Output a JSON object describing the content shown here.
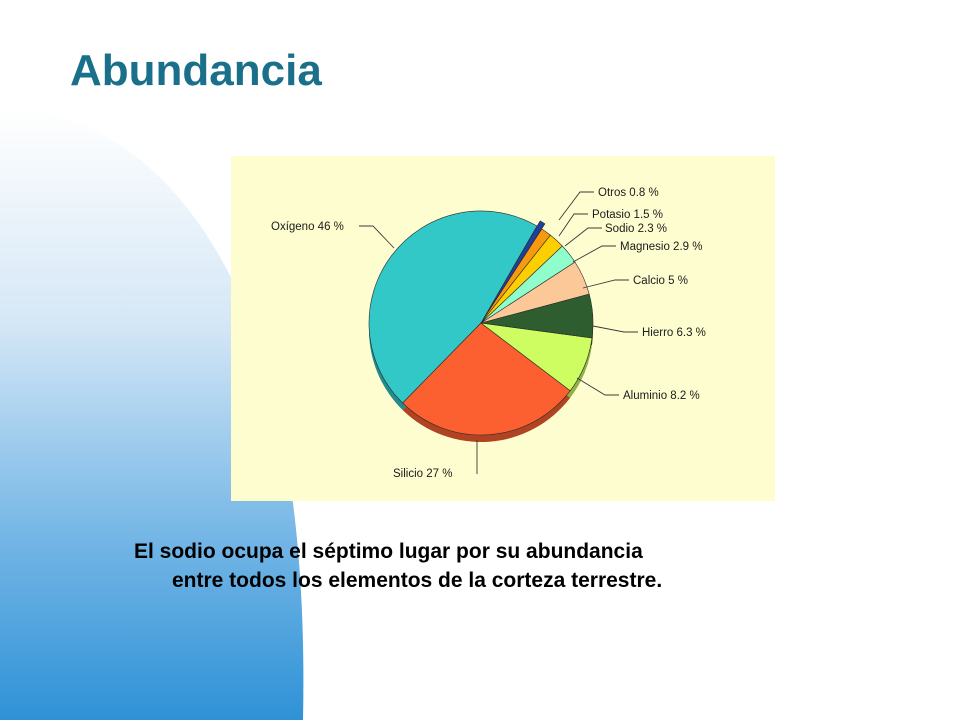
{
  "slide": {
    "title": "Abundancia",
    "caption_line_1": "El sodio ocupa el séptimo lugar por su abundancia",
    "caption_line_2": "entre todos los elementos de la corteza terrestre."
  },
  "colors": {
    "title": "#1a6f8a",
    "chart_background": "#fdfdd0",
    "decor_blue": "#2f92d6"
  },
  "chart_data": {
    "type": "pie",
    "title": "",
    "labels": [
      "Oxígeno 46 %",
      "Silicio 27 %",
      "Aluminio 8.2 %",
      "Hierro 6.3 %",
      "Calcio 5 %",
      "Magnesio 2.9 %",
      "Sodio 2.3 %",
      "Potasio 1.5 %",
      "Otros 0.8 %"
    ],
    "names": [
      "Oxígeno",
      "Silicio",
      "Aluminio",
      "Hierro",
      "Calcio",
      "Magnesio",
      "Sodio",
      "Potasio",
      "Otros"
    ],
    "values": [
      46,
      27,
      8.2,
      6.3,
      5,
      2.9,
      2.3,
      1.5,
      0.8
    ],
    "colors": [
      "#33c8c8",
      "#fc6030",
      "#cdfd60",
      "#2e5e30",
      "#fcc898",
      "#90fdcc",
      "#fcd000",
      "#f89a10",
      "#2040a0"
    ],
    "legend": "none"
  }
}
